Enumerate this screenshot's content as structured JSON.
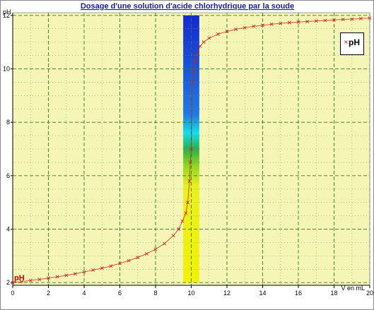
{
  "chart_data": {
    "type": "line",
    "title": "Dosage d'une solution d'acide chlorhydrique par la soude",
    "xlabel": "V en mL",
    "ylabel": "pH",
    "start_label": "pH",
    "xlim": [
      0,
      20
    ],
    "ylim": [
      1.9,
      12.1
    ],
    "x_ticks": [
      0,
      2,
      4,
      6,
      8,
      10,
      12,
      14,
      16,
      18,
      20
    ],
    "y_ticks": [
      2,
      4,
      6,
      8,
      10,
      12
    ],
    "grid": true,
    "legend": "top-right",
    "background_color": "#f5f5b5",
    "indicator_band": {
      "x_range": [
        9.55,
        10.45
      ],
      "colors": [
        {
          "ph": 12.0,
          "color": "#1428d2"
        },
        {
          "ph": 8.3,
          "color": "#1e7ae6"
        },
        {
          "ph": 7.6,
          "color": "#10e0ee"
        },
        {
          "ph": 7.0,
          "color": "#28b04a"
        },
        {
          "ph": 6.4,
          "color": "#8ed420"
        },
        {
          "ph": 5.6,
          "color": "#eaf01a"
        },
        {
          "ph": 2.0,
          "color": "#f2f200"
        }
      ]
    },
    "series": [
      {
        "name": "pH",
        "color": "#cc2222",
        "x": [
          0.0,
          0.5,
          1.0,
          1.5,
          2.0,
          2.5,
          3.0,
          3.5,
          4.0,
          4.5,
          5.0,
          5.5,
          6.0,
          6.5,
          7.0,
          7.5,
          8.0,
          8.5,
          9.0,
          9.3,
          9.5,
          9.7,
          9.8,
          9.9,
          9.95,
          10.0,
          10.05,
          10.1,
          10.2,
          10.3,
          10.5,
          10.7,
          11.0,
          11.5,
          12.0,
          12.5,
          13.0,
          13.5,
          14.0,
          14.5,
          15.0,
          15.5,
          16.0,
          16.5,
          17.0,
          17.5,
          18.0,
          18.5,
          19.0,
          19.5,
          20.0
        ],
        "y": [
          2.0,
          2.04,
          2.08,
          2.12,
          2.17,
          2.22,
          2.27,
          2.33,
          2.4,
          2.47,
          2.54,
          2.62,
          2.72,
          2.82,
          2.94,
          3.08,
          3.25,
          3.46,
          3.76,
          4.0,
          4.3,
          4.6,
          5.0,
          5.8,
          6.5,
          7.0,
          9.5,
          9.9,
          10.3,
          10.55,
          10.85,
          11.0,
          11.15,
          11.3,
          11.4,
          11.48,
          11.54,
          11.59,
          11.63,
          11.67,
          11.7,
          11.73,
          11.75,
          11.77,
          11.79,
          11.81,
          11.83,
          11.85,
          11.86,
          11.88,
          11.9
        ]
      }
    ]
  }
}
